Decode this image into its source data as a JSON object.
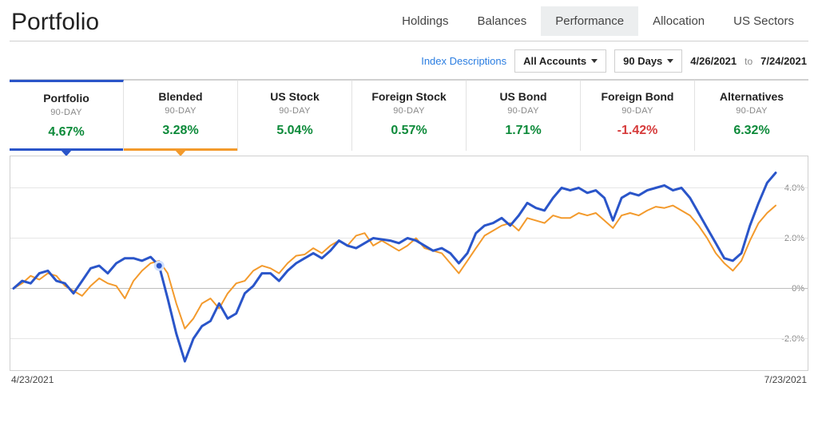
{
  "page_title": "Portfolio",
  "tabs": [
    {
      "label": "Holdings",
      "active": false
    },
    {
      "label": "Balances",
      "active": false
    },
    {
      "label": "Performance",
      "active": true
    },
    {
      "label": "Allocation",
      "active": false
    },
    {
      "label": "US Sectors",
      "active": false
    }
  ],
  "filters": {
    "index_descriptions": "Index Descriptions",
    "account_selector": "All Accounts",
    "range_selector": "90 Days",
    "date_from": "4/26/2021",
    "date_to_label": "to",
    "date_to": "7/24/2021"
  },
  "cards": [
    {
      "key": "portfolio",
      "title": "Portfolio",
      "sub": "90-DAY",
      "value": "4.67%",
      "sign": "pos",
      "selected": 1
    },
    {
      "key": "blended",
      "title": "Blended",
      "sub": "90-DAY",
      "value": "3.28%",
      "sign": "pos",
      "selected": 2
    },
    {
      "key": "us-stock",
      "title": "US Stock",
      "sub": "90-DAY",
      "value": "5.04%",
      "sign": "pos"
    },
    {
      "key": "foreign-stock",
      "title": "Foreign Stock",
      "sub": "90-DAY",
      "value": "0.57%",
      "sign": "pos"
    },
    {
      "key": "us-bond",
      "title": "US Bond",
      "sub": "90-DAY",
      "value": "1.71%",
      "sign": "pos"
    },
    {
      "key": "foreign-bond",
      "title": "Foreign Bond",
      "sub": "90-DAY",
      "value": "-1.42%",
      "sign": "neg"
    },
    {
      "key": "alternatives",
      "title": "Alternatives",
      "sub": "90-DAY",
      "value": "6.32%",
      "sign": "pos"
    }
  ],
  "chart": {
    "type": "line",
    "ylim": [
      -3,
      5
    ],
    "yticks": [
      -2,
      0,
      2,
      4
    ],
    "ytick_labels": [
      "-2.0%",
      "0%",
      "2.0%",
      "4.0%"
    ],
    "x_start_label": "4/23/2021",
    "x_end_label": "7/23/2021",
    "grid_color": "#e6e6e6",
    "zero_line_color": "#bdbdbd",
    "background_color": "#ffffff",
    "series": [
      {
        "name": "Portfolio",
        "color": "#2a55c9",
        "stroke_width": 3,
        "values": [
          0.0,
          0.3,
          0.2,
          0.6,
          0.7,
          0.3,
          0.2,
          -0.2,
          0.3,
          0.8,
          0.9,
          0.6,
          1.0,
          1.2,
          1.2,
          1.1,
          1.25,
          0.9,
          -0.4,
          -1.8,
          -2.9,
          -2.0,
          -1.5,
          -1.3,
          -0.6,
          -1.2,
          -1.0,
          -0.2,
          0.1,
          0.6,
          0.6,
          0.3,
          0.7,
          1.0,
          1.2,
          1.4,
          1.2,
          1.5,
          1.9,
          1.7,
          1.6,
          1.8,
          2.0,
          1.95,
          1.9,
          1.8,
          2.0,
          1.9,
          1.7,
          1.5,
          1.6,
          1.4,
          1.0,
          1.4,
          2.2,
          2.5,
          2.6,
          2.8,
          2.5,
          2.9,
          3.4,
          3.2,
          3.1,
          3.6,
          4.0,
          3.9,
          4.0,
          3.8,
          3.9,
          3.6,
          2.7,
          3.6,
          3.8,
          3.7,
          3.9,
          4.0,
          4.1,
          3.9,
          4.0,
          3.6,
          3.0,
          2.4,
          1.8,
          1.2,
          1.1,
          1.4,
          2.5,
          3.4,
          4.2,
          4.6
        ]
      },
      {
        "name": "Blended",
        "color": "#f39a2c",
        "stroke_width": 2,
        "values": [
          0.0,
          0.2,
          0.5,
          0.35,
          0.6,
          0.5,
          0.1,
          -0.1,
          -0.3,
          0.1,
          0.4,
          0.2,
          0.1,
          -0.4,
          0.3,
          0.7,
          1.0,
          1.1,
          0.6,
          -0.6,
          -1.6,
          -1.2,
          -0.6,
          -0.4,
          -0.8,
          -0.2,
          0.2,
          0.3,
          0.7,
          0.9,
          0.8,
          0.6,
          1.0,
          1.3,
          1.35,
          1.6,
          1.4,
          1.7,
          1.9,
          1.7,
          2.1,
          2.2,
          1.7,
          1.9,
          1.7,
          1.5,
          1.7,
          2.0,
          1.6,
          1.5,
          1.4,
          1.0,
          0.6,
          1.1,
          1.6,
          2.1,
          2.3,
          2.5,
          2.6,
          2.3,
          2.8,
          2.7,
          2.6,
          2.9,
          2.8,
          2.8,
          3.0,
          2.9,
          3.0,
          2.7,
          2.4,
          2.9,
          3.0,
          2.9,
          3.1,
          3.25,
          3.2,
          3.3,
          3.1,
          2.9,
          2.5,
          2.0,
          1.4,
          1.0,
          0.7,
          1.1,
          1.9,
          2.6,
          3.0,
          3.3
        ]
      }
    ],
    "marker": {
      "series": 0,
      "index": 17,
      "radius": 5
    }
  }
}
